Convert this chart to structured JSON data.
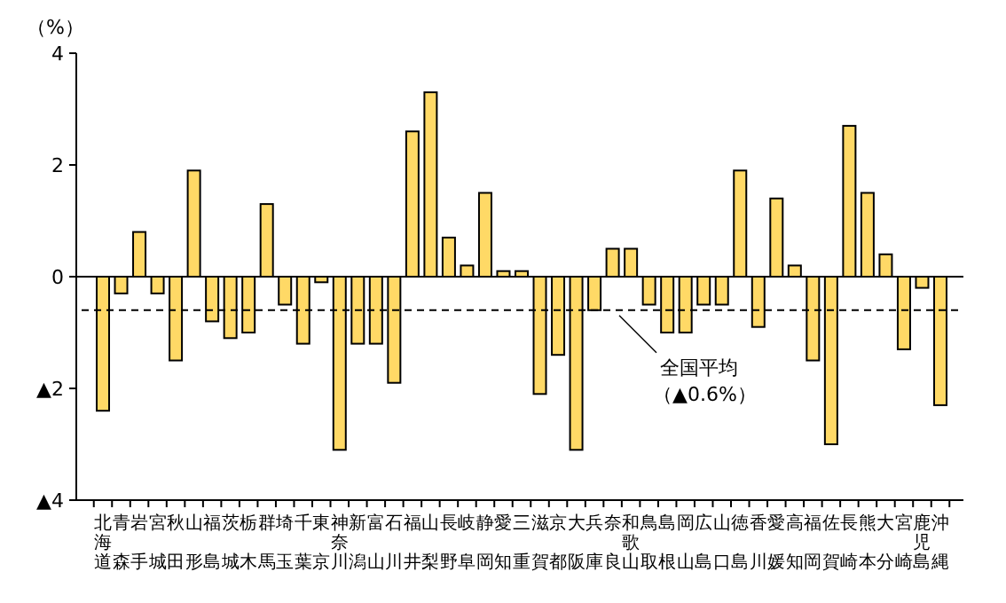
{
  "chart_data": {
    "type": "bar",
    "ylabel": "（%）",
    "categories": [
      "北海道",
      "青森",
      "岩手",
      "宮城",
      "秋田",
      "山形",
      "福島",
      "茨城",
      "栃木",
      "群馬",
      "埼玉",
      "千葉",
      "東京",
      "神奈川",
      "新潟",
      "富山",
      "石川",
      "福井",
      "山梨",
      "長野",
      "岐阜",
      "静岡",
      "愛知",
      "三重",
      "滋賀",
      "京都",
      "大阪",
      "兵庫",
      "奈良",
      "和歌山",
      "鳥取",
      "島根",
      "岡山",
      "広島",
      "山口",
      "徳島",
      "香川",
      "愛媛",
      "高知",
      "福岡",
      "佐賀",
      "長崎",
      "熊本",
      "大分",
      "宮崎",
      "鹿児島",
      "沖縄"
    ],
    "values": [
      -2.4,
      -0.3,
      0.8,
      -0.3,
      -1.5,
      1.9,
      -0.8,
      -1.1,
      -1.0,
      1.3,
      -0.5,
      -1.2,
      -0.1,
      -3.1,
      -1.2,
      -1.2,
      -1.9,
      2.6,
      3.3,
      0.7,
      0.2,
      1.5,
      0.1,
      0.1,
      -2.1,
      -1.4,
      -3.1,
      -0.6,
      0.5,
      0.5,
      -0.5,
      -1.0,
      -1.0,
      -0.5,
      -0.5,
      1.9,
      -0.9,
      1.4,
      0.2,
      -1.5,
      -3.0,
      2.7,
      1.5,
      0.4,
      -1.3,
      -0.2,
      -2.3
    ],
    "color": "#ffd966",
    "ylim": [
      -4,
      4
    ],
    "yticks": [
      {
        "value": 4,
        "label": "4"
      },
      {
        "value": 2,
        "label": "2"
      },
      {
        "value": 0,
        "label": "0"
      },
      {
        "value": -2,
        "label": "▲2"
      },
      {
        "value": -4,
        "label": "▲4"
      }
    ],
    "ref_lines": [
      {
        "axis": "y",
        "value": -0.6,
        "label": "全国平均（▲0.6%）",
        "line_style": "dashed",
        "color": "#000000"
      }
    ]
  }
}
